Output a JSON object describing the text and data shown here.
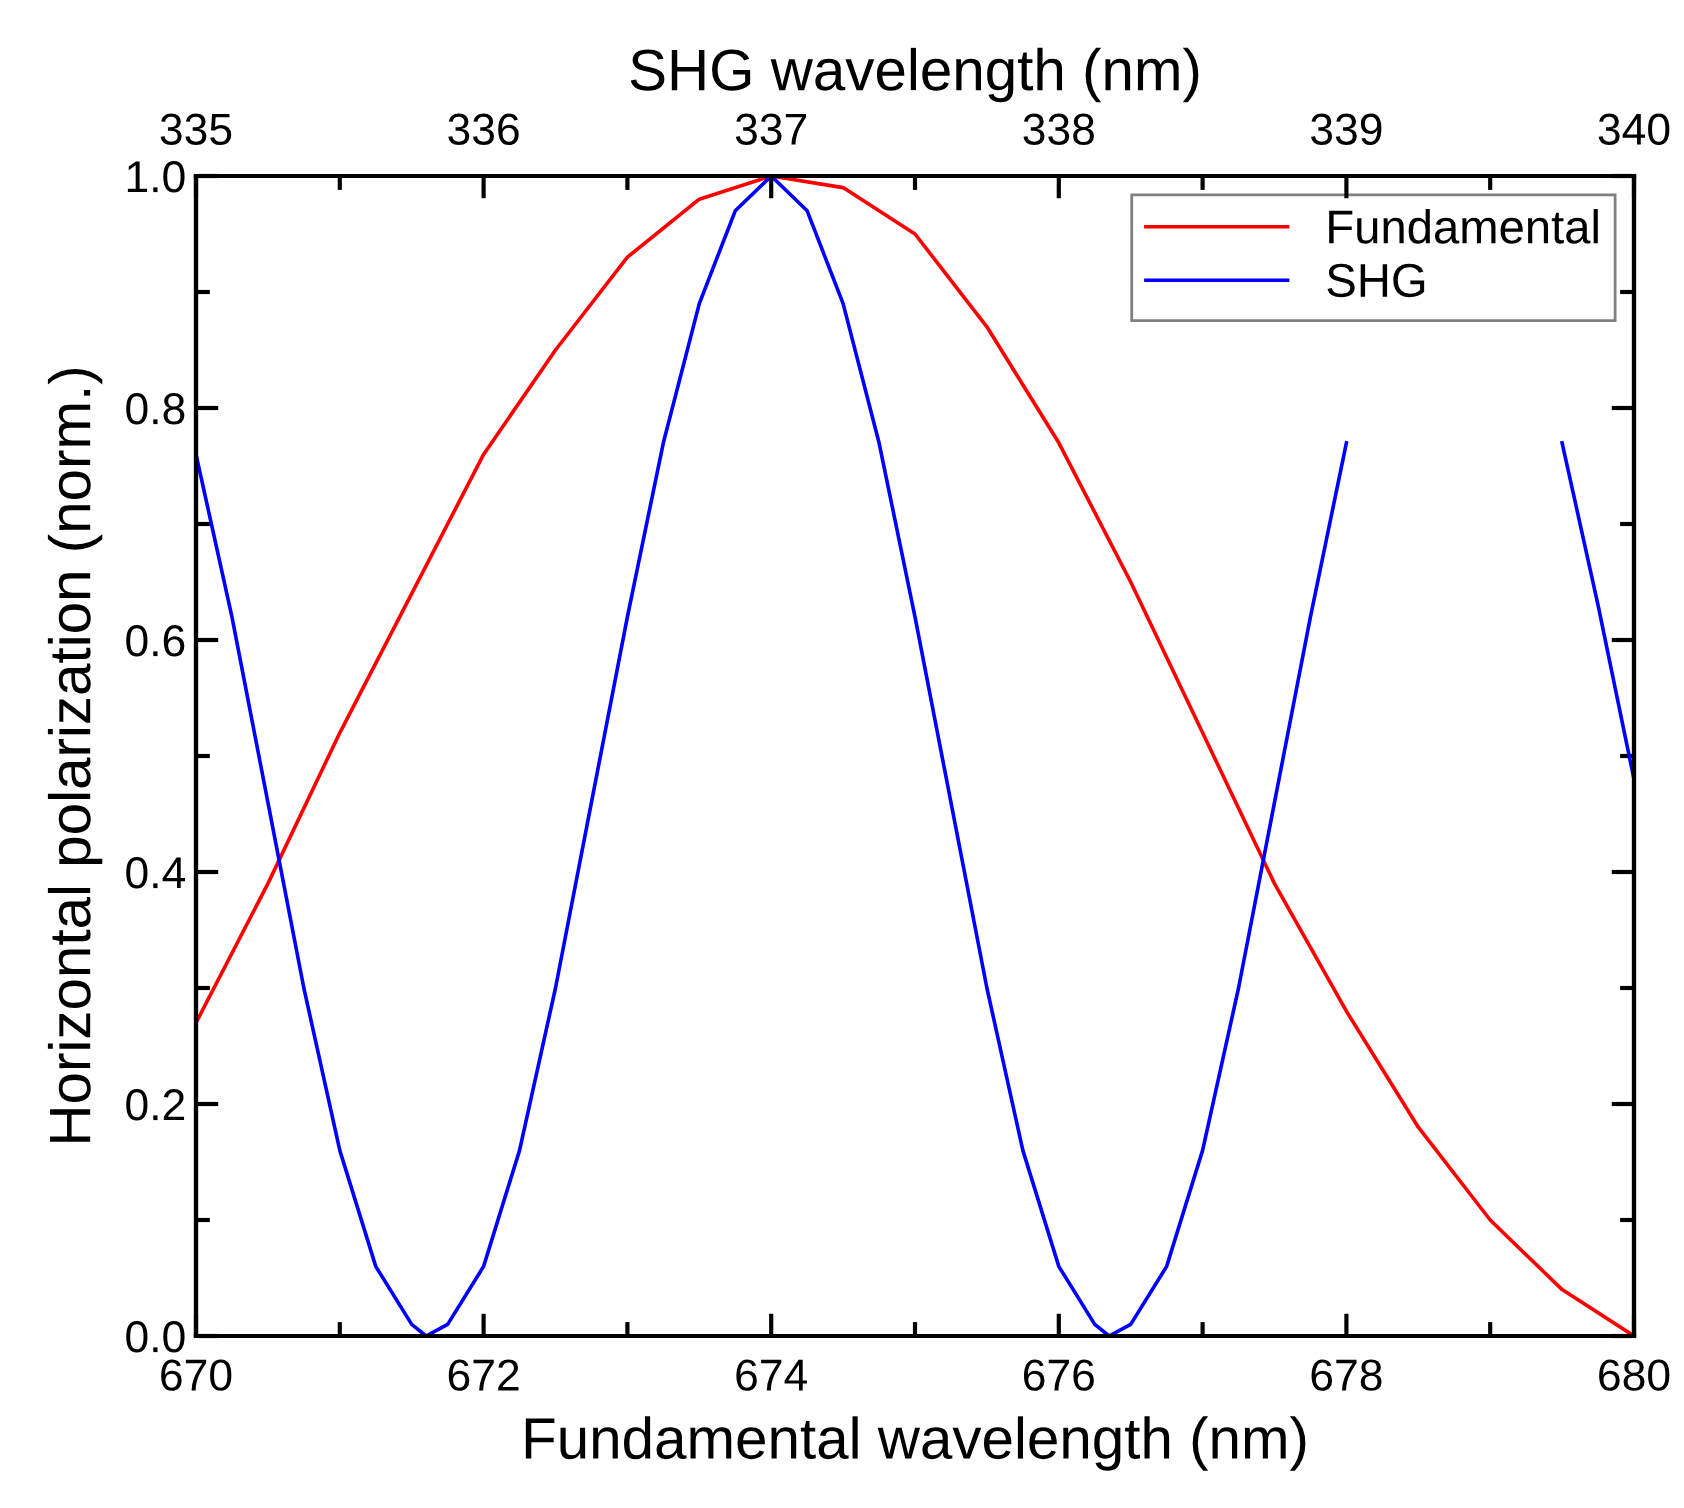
{
  "chart_data": {
    "type": "line",
    "xlabel": "Fundamental wavelength (nm)",
    "ylabel": "Horizontal polarization (norm.)",
    "x2label": "SHG wavelength (nm)",
    "xlim": [
      670,
      680
    ],
    "xticks": [
      670,
      672,
      674,
      676,
      678,
      680
    ],
    "x2lim": [
      335,
      340
    ],
    "x2ticks": [
      335,
      336,
      337,
      338,
      339,
      340
    ],
    "ylim": [
      0,
      1
    ],
    "yticks": [
      {
        "value": 0,
        "label": "0.0"
      },
      0.2,
      0.4,
      0.6,
      0.8,
      {
        "value": 1,
        "label": "1.0"
      }
    ],
    "grid": false,
    "legend": "top right",
    "marker": "none",
    "line_style": "solid",
    "series": [
      {
        "name": "Fundamental",
        "color": "#ff0000",
        "x": [
          670,
          670.5,
          671,
          671.5,
          672,
          672.5,
          673,
          673.5,
          674,
          674.5,
          675,
          675.5,
          676,
          676.5,
          677,
          677.5,
          678,
          678.5,
          679,
          679.5,
          680
        ],
        "values": [
          0.27,
          0.39,
          0.52,
          0.64,
          0.76,
          0.85,
          0.93,
          0.98,
          1.0,
          0.99,
          0.95,
          0.87,
          0.77,
          0.65,
          0.52,
          0.39,
          0.28,
          0.18,
          0.1,
          0.04,
          0.0
        ]
      },
      {
        "name": "SHG",
        "color": "#0000ff",
        "x": [
          670,
          670.25,
          670.5,
          670.75,
          671,
          671.25,
          671.5,
          671.6,
          671.75,
          672,
          672.25,
          672.5,
          672.75,
          673,
          673.25,
          673.5,
          673.75,
          674,
          674.25,
          674.5,
          674.75,
          675,
          675.25,
          675.5,
          675.75,
          676,
          676.25,
          676.35,
          676.5,
          676.75,
          677,
          677.25,
          677.5,
          677.75,
          678,
          678.25,
          678.5,
          678.75,
          679,
          679.25,
          679.5,
          679.75,
          680
        ],
        "values": [
          0.76,
          0.62,
          0.46,
          0.3,
          0.16,
          0.06,
          0.01,
          0.0,
          0.01,
          0.06,
          0.16,
          0.3,
          0.46,
          0.62,
          0.77,
          0.89,
          0.97,
          1.0,
          0.97,
          0.89,
          0.77,
          0.62,
          0.46,
          0.3,
          0.16,
          0.06,
          0.01,
          0.0,
          0.01,
          0.06,
          0.16,
          0.3,
          0.46,
          0.62,
          0.77,
          null,
          null,
          null,
          null,
          null,
          0.77,
          0.63,
          0.48
        ]
      }
    ]
  }
}
